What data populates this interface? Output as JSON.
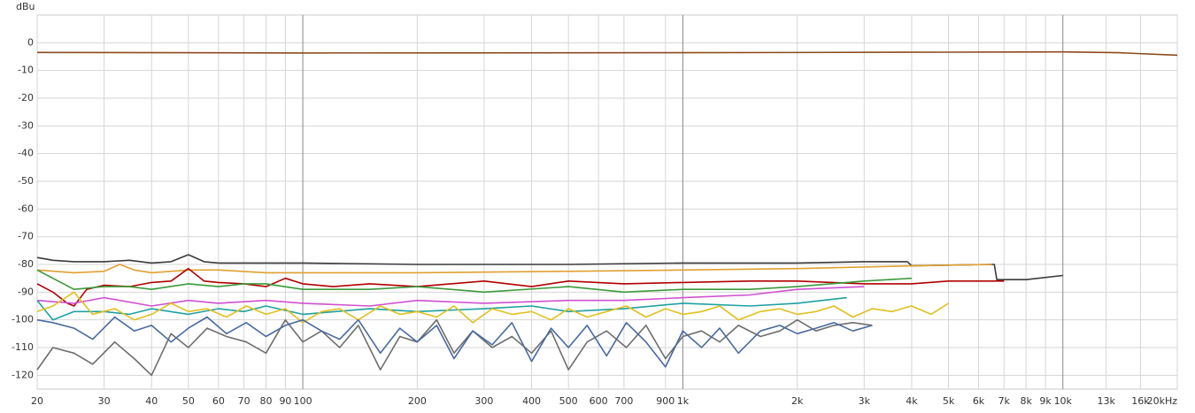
{
  "chart_data": {
    "type": "line",
    "y_label": "dBu",
    "xscale": "log",
    "grid": true,
    "xlim": [
      20,
      20000
    ],
    "ylim": [
      -125,
      10
    ],
    "yticks": [
      0,
      -10,
      -20,
      -30,
      -40,
      -50,
      -60,
      -70,
      -80,
      -90,
      -100,
      -110,
      -120
    ],
    "xticks": [
      20,
      30,
      40,
      50,
      60,
      70,
      80,
      90,
      100,
      200,
      300,
      400,
      500,
      600,
      700,
      900,
      {
        "value": 1000,
        "label": "1k"
      },
      {
        "value": 2000,
        "label": "2k"
      },
      {
        "value": 3000,
        "label": "3k"
      },
      {
        "value": 4000,
        "label": "4k"
      },
      {
        "value": 5000,
        "label": "5k"
      },
      {
        "value": 6000,
        "label": "6k"
      },
      {
        "value": 7000,
        "label": "7k"
      },
      {
        "value": 8000,
        "label": "8k"
      },
      {
        "value": 9000,
        "label": "9k"
      },
      {
        "value": 10000,
        "label": "10k"
      },
      {
        "value": 13000,
        "label": "13k"
      },
      {
        "value": 16000,
        "label": "16k"
      },
      {
        "value": 20000,
        "label": "20kHz"
      }
    ],
    "series": [
      {
        "color": "#8b4a1c",
        "x": [
          20,
          100,
          1000,
          5000,
          10000,
          14000,
          20000
        ],
        "values": [
          -3.5,
          -3.7,
          -3.6,
          -3.4,
          -3.3,
          -3.6,
          -4.5
        ]
      },
      {
        "color": "#3a3a3a",
        "x": [
          20,
          22,
          25,
          30,
          35,
          40,
          45,
          50,
          55,
          60,
          80,
          100,
          200,
          500,
          1000,
          2000,
          3000,
          3900,
          4000,
          6500,
          6600,
          6700,
          8000,
          10000
        ],
        "values": [
          -77.5,
          -78.5,
          -79,
          -79,
          -78.5,
          -79.5,
          -79,
          -76.5,
          -79,
          -79.5,
          -79.5,
          -79.5,
          -80,
          -80,
          -79.5,
          -79.5,
          -79,
          -79,
          -80.5,
          -80,
          -80,
          -85.5,
          -85.5,
          -84
        ]
      },
      {
        "color": "#e0a030",
        "x": [
          20,
          25,
          30,
          33,
          36,
          40,
          50,
          60,
          80,
          100,
          200,
          500,
          1000,
          2000,
          4000,
          6500
        ],
        "values": [
          -82,
          -83,
          -82.5,
          -80,
          -82,
          -83,
          -82,
          -82,
          -83,
          -83,
          -83,
          -82.5,
          -82,
          -81.5,
          -80.5,
          -80
        ]
      },
      {
        "color": "#b00000",
        "x": [
          20,
          22,
          24,
          25,
          27,
          30,
          35,
          40,
          45,
          50,
          55,
          60,
          70,
          80,
          90,
          100,
          120,
          150,
          200,
          300,
          400,
          500,
          700,
          1000,
          1500,
          2000,
          3000,
          4000,
          5000,
          6000,
          7000
        ],
        "values": [
          -87,
          -90,
          -94,
          -95,
          -89,
          -87.5,
          -88,
          -86.5,
          -86,
          -81.5,
          -86,
          -86.5,
          -87,
          -88,
          -85,
          -87,
          -88,
          -87,
          -88,
          -86,
          -88,
          -86,
          -87,
          -86.5,
          -86,
          -86,
          -87,
          -87,
          -86,
          -86,
          -86
        ]
      },
      {
        "color": "#3a9a3a",
        "x": [
          20,
          25,
          30,
          35,
          40,
          50,
          60,
          70,
          80,
          100,
          150,
          200,
          300,
          500,
          700,
          1000,
          1500,
          2000,
          3000,
          4000
        ],
        "values": [
          -82,
          -89,
          -88,
          -88,
          -89,
          -87,
          -88,
          -87,
          -87,
          -89,
          -89,
          -88,
          -90,
          -88,
          -90,
          -89,
          -89,
          -88,
          -86,
          -85
        ]
      },
      {
        "color": "#d050d0",
        "x": [
          20,
          25,
          30,
          40,
          50,
          60,
          80,
          100,
          150,
          200,
          300,
          500,
          700,
          1000,
          1500,
          2000,
          3000
        ],
        "values": [
          -93,
          -94,
          -92,
          -95,
          -93,
          -94,
          -93,
          -94,
          -95,
          -93,
          -94,
          -93,
          -93,
          -92,
          -91,
          -89,
          -88
        ]
      },
      {
        "color": "#20a0a0",
        "x": [
          20,
          22,
          25,
          30,
          35,
          40,
          50,
          60,
          70,
          80,
          100,
          150,
          200,
          300,
          400,
          500,
          700,
          1000,
          1500,
          2000,
          2700
        ],
        "values": [
          -93,
          -100,
          -97,
          -97,
          -98,
          -96,
          -98,
          -96,
          -97,
          -95,
          -98,
          -96,
          -97,
          -96,
          -95,
          -97,
          -96,
          -94,
          -95,
          -94,
          -92
        ]
      },
      {
        "color": "#e0c020",
        "x": [
          20,
          22,
          25,
          28,
          32,
          36,
          40,
          45,
          50,
          56,
          63,
          71,
          80,
          90,
          100,
          112,
          125,
          140,
          160,
          180,
          200,
          225,
          250,
          280,
          315,
          355,
          400,
          450,
          500,
          560,
          630,
          710,
          800,
          900,
          1000,
          1120,
          1250,
          1400,
          1600,
          1800,
          2000,
          2240,
          2500,
          2800,
          3150,
          3550,
          4000,
          4500,
          5000
        ],
        "values": [
          -97,
          -95,
          -90,
          -98,
          -96,
          -100,
          -98,
          -94,
          -97,
          -96,
          -99,
          -95,
          -98,
          -96,
          -101,
          -97,
          -96,
          -100,
          -95,
          -98,
          -97,
          -99,
          -95,
          -101,
          -96,
          -98,
          -97,
          -100,
          -96,
          -99,
          -97,
          -95,
          -99,
          -96,
          -98,
          -97,
          -95,
          -100,
          -97,
          -96,
          -98,
          -97,
          -95,
          -99,
          -96,
          -97,
          -95,
          -98,
          -94
        ]
      },
      {
        "color": "#6e6e6e",
        "x": [
          20,
          22,
          25,
          28,
          32,
          36,
          40,
          45,
          50,
          56,
          63,
          71,
          80,
          90,
          100,
          112,
          125,
          140,
          160,
          180,
          200,
          225,
          250,
          280,
          315,
          355,
          400,
          450,
          500,
          560,
          630,
          710,
          800,
          900,
          1000,
          1120,
          1250,
          1400,
          1600,
          1800,
          2000,
          2240,
          2500,
          2800,
          3150
        ],
        "values": [
          -118,
          -110,
          -112,
          -116,
          -108,
          -114,
          -120,
          -105,
          -110,
          -103,
          -106,
          -108,
          -112,
          -100,
          -108,
          -104,
          -110,
          -102,
          -118,
          -106,
          -108,
          -100,
          -112,
          -104,
          -110,
          -106,
          -112,
          -104,
          -118,
          -108,
          -104,
          -110,
          -102,
          -114,
          -106,
          -104,
          -108,
          -102,
          -106,
          -104,
          -100,
          -104,
          -102,
          -101,
          -102
        ]
      },
      {
        "color": "#4a6aa0",
        "x": [
          20,
          22,
          25,
          28,
          32,
          36,
          40,
          45,
          50,
          56,
          63,
          71,
          80,
          90,
          100,
          112,
          125,
          140,
          160,
          180,
          200,
          225,
          250,
          280,
          315,
          355,
          400,
          450,
          500,
          560,
          630,
          710,
          800,
          900,
          1000,
          1120,
          1250,
          1400,
          1600,
          1800,
          2000,
          2240,
          2500,
          2800,
          3150
        ],
        "values": [
          -100,
          -101,
          -103,
          -107,
          -99,
          -104,
          -102,
          -108,
          -103,
          -99,
          -105,
          -101,
          -106,
          -102,
          -100,
          -104,
          -107,
          -100,
          -112,
          -103,
          -108,
          -102,
          -114,
          -104,
          -109,
          -101,
          -115,
          -103,
          -110,
          -102,
          -113,
          -101,
          -108,
          -117,
          -104,
          -110,
          -103,
          -112,
          -104,
          -102,
          -105,
          -103,
          -101,
          -104,
          -102
        ]
      }
    ]
  }
}
